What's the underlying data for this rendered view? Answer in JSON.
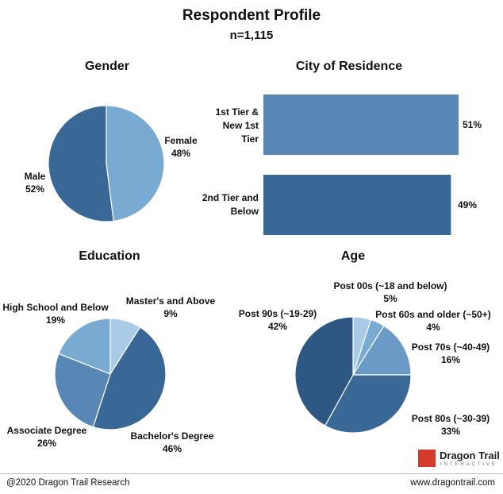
{
  "header": {
    "title": "Respondent Profile",
    "subtitle": "n=1,115"
  },
  "colors": {
    "c1": "#78aad2",
    "c2": "#3a6896",
    "c3": "#5887b6",
    "c4": "#2e5883",
    "c5": "#a9cbe8",
    "c6": "#6a9ac6"
  },
  "footer": {
    "left": "@2020 Dragon Trail Research",
    "right": "www.dragontrail.com"
  },
  "logo": {
    "name": "Dragon Trail",
    "sub": "INTERACTIVE"
  },
  "chart_data": [
    {
      "type": "pie",
      "title": "Gender",
      "slices": [
        {
          "label": "Female",
          "value_label": "48%",
          "value": 48
        },
        {
          "label": "Male",
          "value_label": "52%",
          "value": 52
        }
      ]
    },
    {
      "type": "bar",
      "orientation": "horizontal",
      "title": "City of Residence",
      "categories": [
        "1st Tier & New 1st Tier",
        "2nd Tier and Below"
      ],
      "category_lines": [
        [
          "1st Tier &",
          "New 1st",
          "Tier"
        ],
        [
          "2nd Tier and",
          "Below"
        ]
      ],
      "values": [
        51,
        49
      ],
      "value_labels": [
        "51%",
        "49%"
      ],
      "xlim": [
        0,
        51
      ]
    },
    {
      "type": "pie",
      "title": "Education",
      "slices": [
        {
          "label": "Master's and Above",
          "value_label": "9%",
          "value": 9
        },
        {
          "label": "Bachelor's Degree",
          "value_label": "46%",
          "value": 46
        },
        {
          "label": "Associate Degree",
          "value_label": "26%",
          "value": 26
        },
        {
          "label": "High School and Below",
          "value_label": "19%",
          "value": 19
        }
      ]
    },
    {
      "type": "pie",
      "title": "Age",
      "slices": [
        {
          "label": "Post 00s (~18 and below)",
          "value_label": "5%",
          "value": 5
        },
        {
          "label": "Post 60s and older (~50+)",
          "value_label": "4%",
          "value": 4
        },
        {
          "label": "Post 70s (~40-49)",
          "value_label": "16%",
          "value": 16
        },
        {
          "label": "Post 80s (~30-39)",
          "value_label": "33%",
          "value": 33
        },
        {
          "label": "Post 90s (~19-29)",
          "value_label": "42%",
          "value": 42
        }
      ]
    }
  ]
}
